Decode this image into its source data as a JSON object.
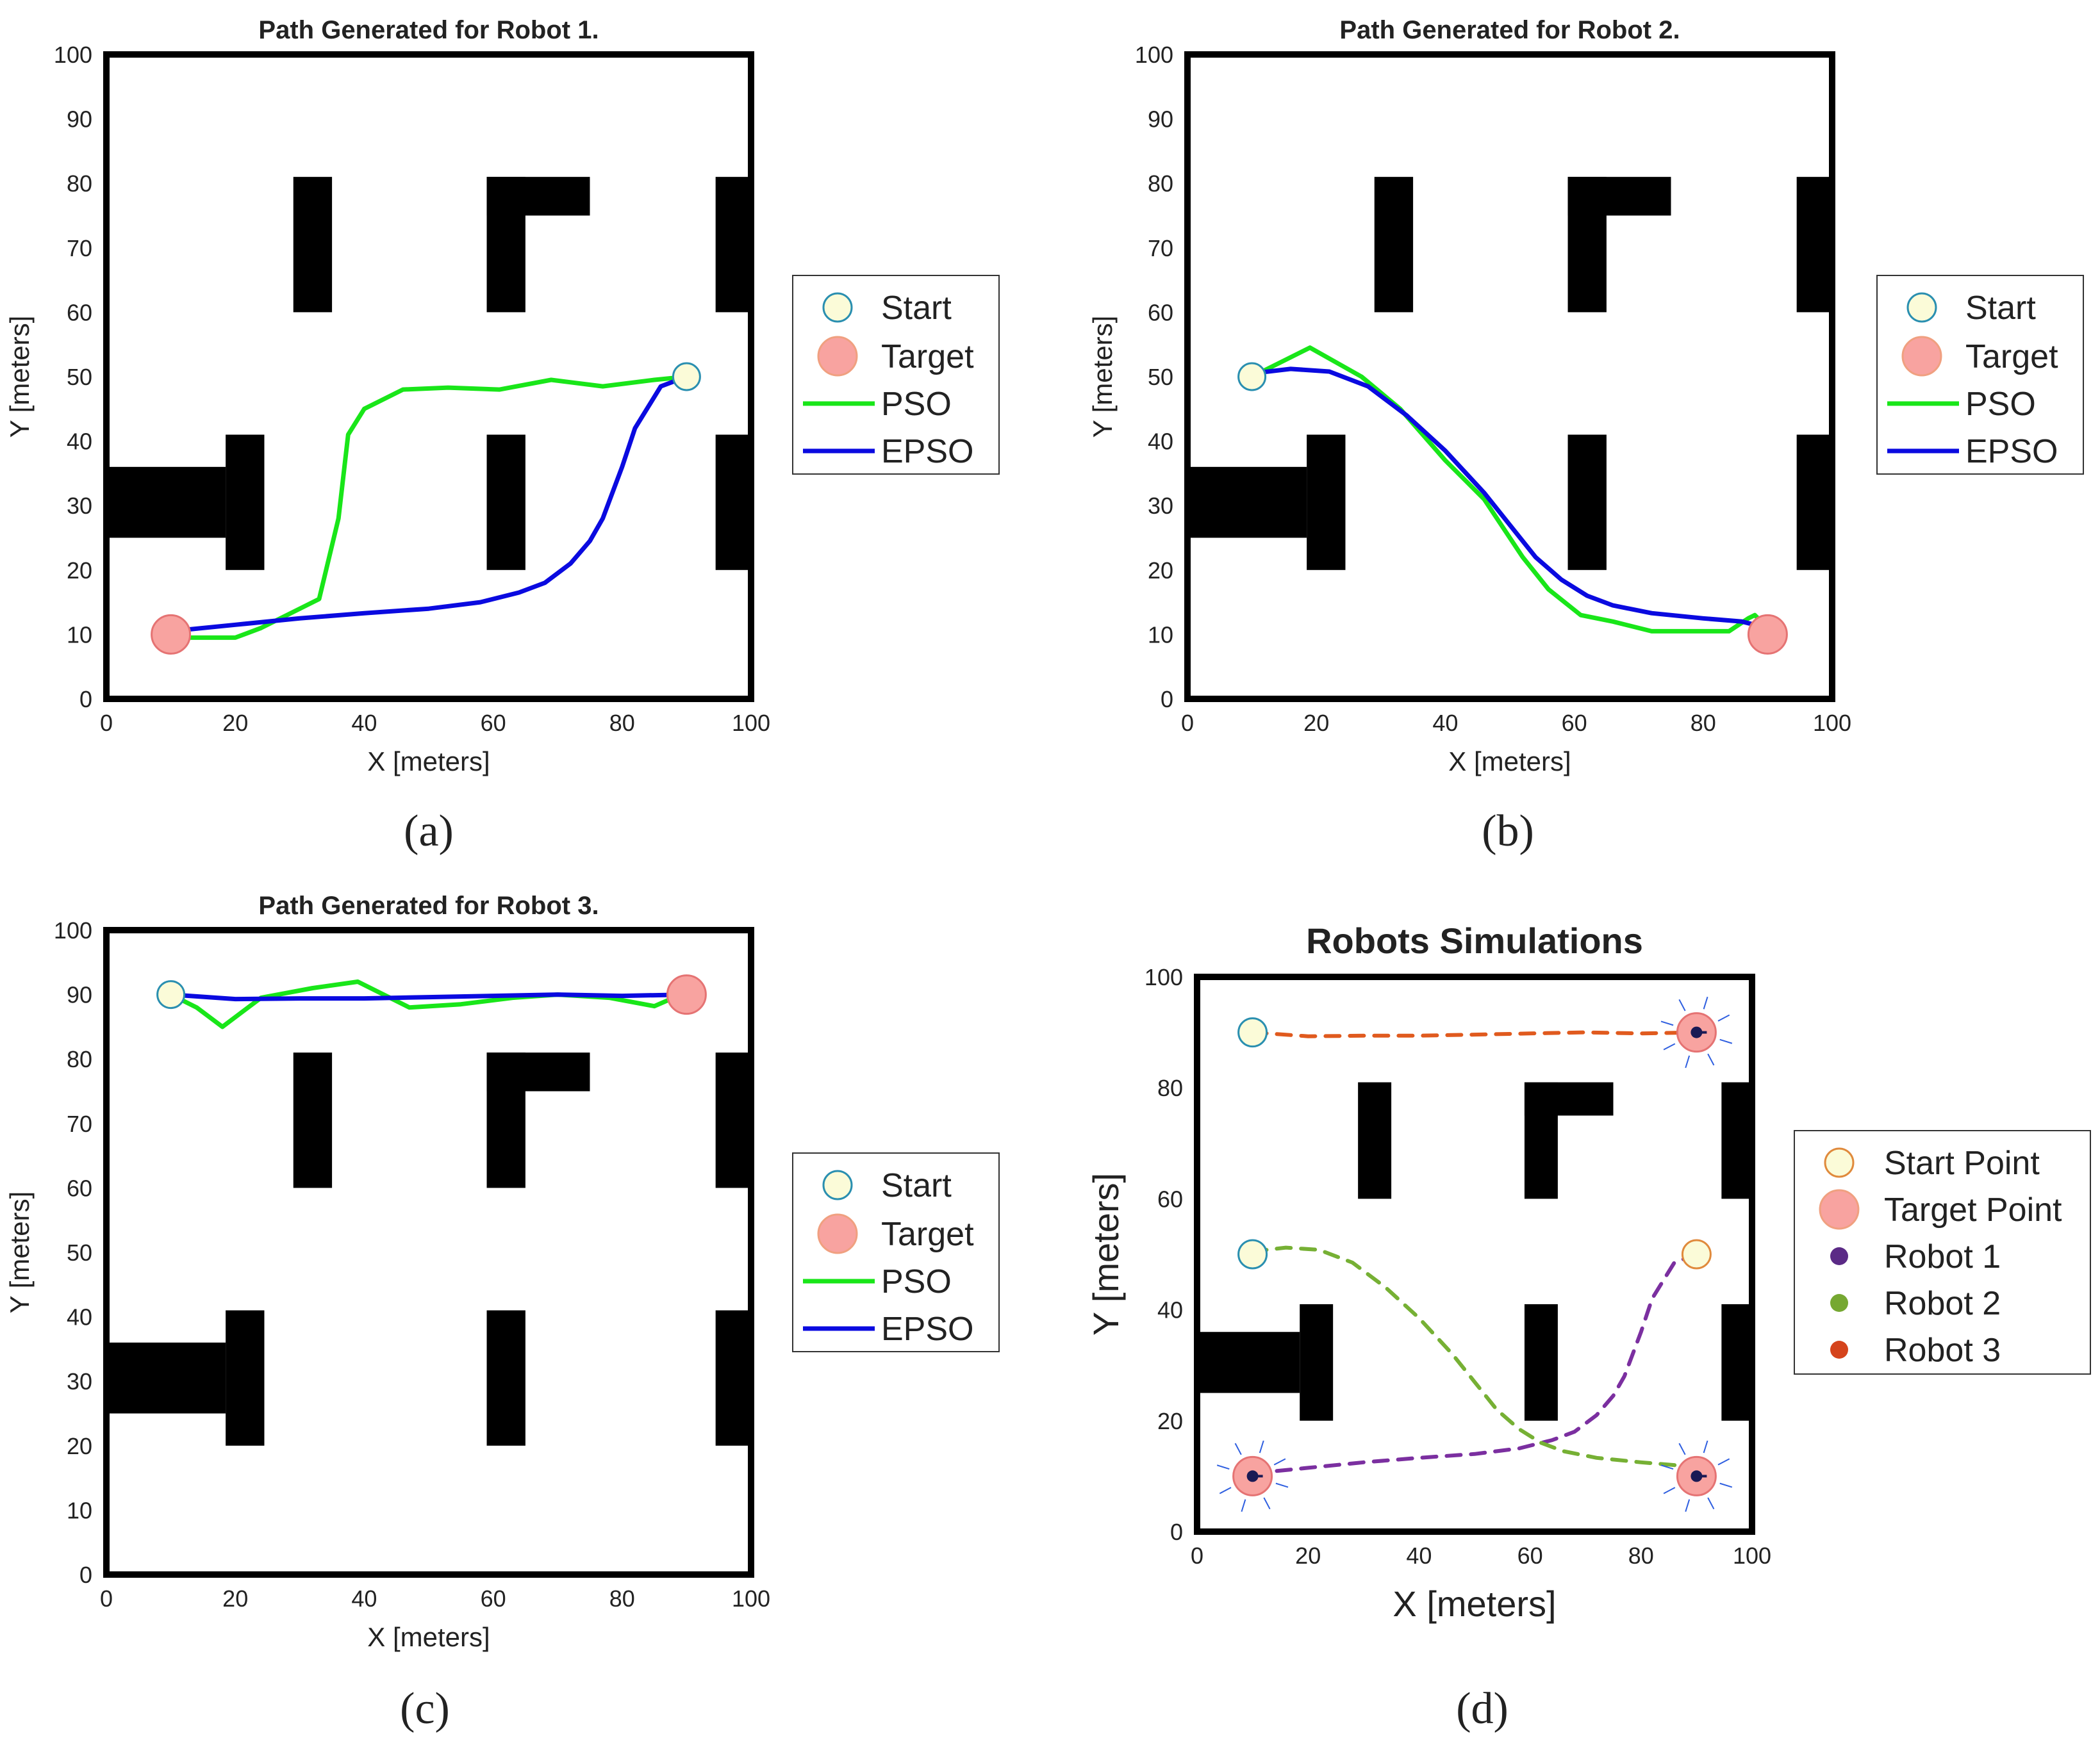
{
  "chart_data": [
    {
      "id": "a",
      "type": "line",
      "title": "Path Generated for Robot 1.",
      "xlabel": "X [meters]",
      "ylabel": "Y [meters]",
      "caption": "(a)",
      "xlim": [
        0,
        100
      ],
      "ylim": [
        0,
        100
      ],
      "xticks": [
        "0",
        "20",
        "40",
        "60",
        "80",
        "100"
      ],
      "yticks": [
        "0",
        "10",
        "20",
        "30",
        "40",
        "50",
        "60",
        "70",
        "80",
        "90",
        "100"
      ],
      "grid": false,
      "legend_position": "right",
      "legend": [
        {
          "label": "Start",
          "kind": "start-marker"
        },
        {
          "label": "Target",
          "kind": "target-marker"
        },
        {
          "label": "PSO",
          "kind": "line",
          "color": "#19e619"
        },
        {
          "label": "EPSO",
          "kind": "line",
          "color": "#0a0ae0"
        }
      ],
      "start": [
        90,
        50
      ],
      "target": [
        10,
        10
      ],
      "series": [
        {
          "name": "PSO",
          "color": "#19e619",
          "x": [
            90,
            85,
            77,
            69,
            61,
            53,
            46,
            40,
            37.5,
            36,
            33,
            28,
            24,
            20,
            12,
            10
          ],
          "y": [
            50,
            49.5,
            48.5,
            49.5,
            48,
            48.3,
            48,
            45,
            41,
            28,
            15.5,
            13,
            11,
            9.5,
            9.5,
            10
          ]
        },
        {
          "name": "EPSO",
          "color": "#0a0ae0",
          "x": [
            90,
            86,
            82,
            80,
            77,
            75,
            72,
            68,
            64,
            58,
            50,
            40,
            30,
            20,
            10
          ],
          "y": [
            50,
            48.5,
            42,
            36,
            28,
            24.5,
            21,
            18,
            16.5,
            15,
            14,
            13.3,
            12.5,
            11.5,
            10.5
          ]
        }
      ]
    },
    {
      "id": "b",
      "type": "line",
      "title": "Path Generated for Robot 2.",
      "xlabel": "X [meters]",
      "ylabel": "Y [meters]",
      "caption": "(b)",
      "xlim": [
        0,
        100
      ],
      "ylim": [
        0,
        100
      ],
      "xticks": [
        "0",
        "20",
        "40",
        "60",
        "80",
        "100"
      ],
      "yticks": [
        "0",
        "10",
        "20",
        "30",
        "40",
        "50",
        "60",
        "70",
        "80",
        "90",
        "100"
      ],
      "grid": false,
      "legend_position": "right",
      "legend": [
        {
          "label": "Start",
          "kind": "start-marker"
        },
        {
          "label": "Target",
          "kind": "target-marker"
        },
        {
          "label": "PSO",
          "kind": "line",
          "color": "#19e619"
        },
        {
          "label": "EPSO",
          "kind": "line",
          "color": "#0a0ae0"
        }
      ],
      "start": [
        10,
        50
      ],
      "target": [
        90,
        10
      ],
      "series": [
        {
          "name": "PSO",
          "color": "#19e619",
          "x": [
            10,
            19,
            27,
            33,
            40,
            46,
            52,
            56,
            61,
            66,
            72,
            78,
            84,
            87,
            88,
            90
          ],
          "y": [
            50,
            54.5,
            50,
            45,
            37,
            31,
            22,
            17,
            13,
            12,
            10.5,
            10.5,
            10.5,
            12.5,
            13,
            11
          ]
        },
        {
          "name": "EPSO",
          "color": "#0a0ae0",
          "x": [
            10,
            16,
            22,
            28,
            34,
            40,
            46,
            50,
            54,
            58,
            62,
            66,
            72,
            80,
            86,
            90
          ],
          "y": [
            50.5,
            51.2,
            50.8,
            48.5,
            44,
            38.5,
            32,
            27,
            22,
            18.5,
            16,
            14.5,
            13.3,
            12.5,
            12,
            11
          ]
        }
      ]
    },
    {
      "id": "c",
      "type": "line",
      "title": "Path Generated for Robot 3.",
      "xlabel": "X [meters]",
      "ylabel": "Y [meters]",
      "caption": "(c)",
      "xlim": [
        0,
        100
      ],
      "ylim": [
        0,
        100
      ],
      "xticks": [
        "0",
        "20",
        "40",
        "60",
        "80",
        "100"
      ],
      "yticks": [
        "0",
        "10",
        "20",
        "30",
        "40",
        "50",
        "60",
        "70",
        "80",
        "90",
        "100"
      ],
      "grid": false,
      "legend_position": "right",
      "legend": [
        {
          "label": "Start",
          "kind": "start-marker"
        },
        {
          "label": "Target",
          "kind": "target-marker"
        },
        {
          "label": "PSO",
          "kind": "line",
          "color": "#19e619"
        },
        {
          "label": "EPSO",
          "kind": "line",
          "color": "#0a0ae0"
        }
      ],
      "start": [
        10,
        90
      ],
      "target": [
        90,
        90
      ],
      "series": [
        {
          "name": "PSO",
          "color": "#19e619",
          "x": [
            10,
            14,
            18,
            24,
            32,
            39,
            47,
            55,
            63,
            70,
            78,
            85,
            88,
            90
          ],
          "y": [
            90,
            88,
            85,
            89.5,
            91,
            92,
            88,
            88.5,
            89.5,
            90,
            89.5,
            88.2,
            89.5,
            90
          ]
        },
        {
          "name": "EPSO",
          "color": "#0a0ae0",
          "x": [
            10,
            20,
            30,
            40,
            50,
            60,
            70,
            80,
            90
          ],
          "y": [
            90,
            89.3,
            89.4,
            89.4,
            89.6,
            89.8,
            90,
            89.8,
            90
          ]
        }
      ]
    },
    {
      "id": "d",
      "type": "line",
      "title": "Robots Simulations",
      "xlabel": "X [meters]",
      "ylabel": "Y [meters]",
      "caption": "(d)",
      "xlim": [
        0,
        100
      ],
      "ylim": [
        0,
        100
      ],
      "xticks": [
        "0",
        "20",
        "40",
        "60",
        "80",
        "100"
      ],
      "yticks": [
        "0",
        "20",
        "40",
        "60",
        "80",
        "100"
      ],
      "grid": false,
      "legend_position": "right",
      "legend": [
        {
          "label": "Start Point",
          "kind": "start-point"
        },
        {
          "label": "Target Point",
          "kind": "target-point"
        },
        {
          "label": "Robot 1",
          "kind": "dot",
          "color": "#5b2a86"
        },
        {
          "label": "Robot 2",
          "kind": "dot",
          "color": "#76a832"
        },
        {
          "label": "Robot 3",
          "kind": "dot",
          "color": "#d5441c"
        }
      ],
      "start_points": [
        [
          10,
          90
        ],
        [
          10,
          50
        ],
        [
          90,
          50
        ]
      ],
      "target_points": [
        [
          90,
          90
        ],
        [
          10,
          10
        ],
        [
          90,
          10
        ]
      ],
      "series": [
        {
          "name": "Robot 1",
          "color": "#7b2fa0",
          "x": [
            90,
            86,
            82,
            80,
            77,
            75,
            72,
            68,
            64,
            58,
            50,
            40,
            30,
            20,
            10
          ],
          "y": [
            50,
            48.5,
            42,
            36,
            28,
            24.5,
            21,
            18,
            16.5,
            15,
            14,
            13.3,
            12.5,
            11.5,
            10.5
          ]
        },
        {
          "name": "Robot 2",
          "color": "#76b034",
          "x": [
            10,
            16,
            22,
            28,
            34,
            40,
            46,
            50,
            54,
            58,
            62,
            66,
            72,
            80,
            86,
            90
          ],
          "y": [
            50.5,
            51.2,
            50.8,
            48.5,
            44,
            38.5,
            32,
            27,
            22,
            18.5,
            16,
            14.5,
            13.3,
            12.5,
            12,
            11
          ]
        },
        {
          "name": "Robot 3",
          "color": "#e05a1e",
          "x": [
            10,
            20,
            30,
            40,
            50,
            60,
            70,
            80,
            90
          ],
          "y": [
            90,
            89.3,
            89.4,
            89.4,
            89.6,
            89.8,
            90,
            89.8,
            90
          ]
        }
      ],
      "robot_positions": [
        [
          90,
          90
        ],
        [
          10,
          10
        ],
        [
          90,
          10
        ]
      ]
    }
  ],
  "obstacles": [
    {
      "name": "left-block",
      "x0": 0,
      "y0": 25,
      "x1": 18.5,
      "y1": 36
    },
    {
      "name": "left-block-cap",
      "x0": 18.5,
      "y0": 20,
      "x1": 24.5,
      "y1": 41
    },
    {
      "name": "upper-left-pillar",
      "x0": 29,
      "y0": 60,
      "x1": 35,
      "y1": 81
    },
    {
      "name": "upper-mid-l-vertical",
      "x0": 59,
      "y0": 60,
      "x1": 65,
      "y1": 81
    },
    {
      "name": "upper-mid-l-horizontal",
      "x0": 59,
      "y0": 75,
      "x1": 75,
      "y1": 81
    },
    {
      "name": "lower-mid-pillar",
      "x0": 59,
      "y0": 20,
      "x1": 65,
      "y1": 41
    },
    {
      "name": "right-upper-pillar",
      "x0": 94.5,
      "y0": 60,
      "x1": 100,
      "y1": 81
    },
    {
      "name": "right-lower-pillar",
      "x0": 94.5,
      "y0": 20,
      "x1": 100,
      "y1": 41
    }
  ]
}
